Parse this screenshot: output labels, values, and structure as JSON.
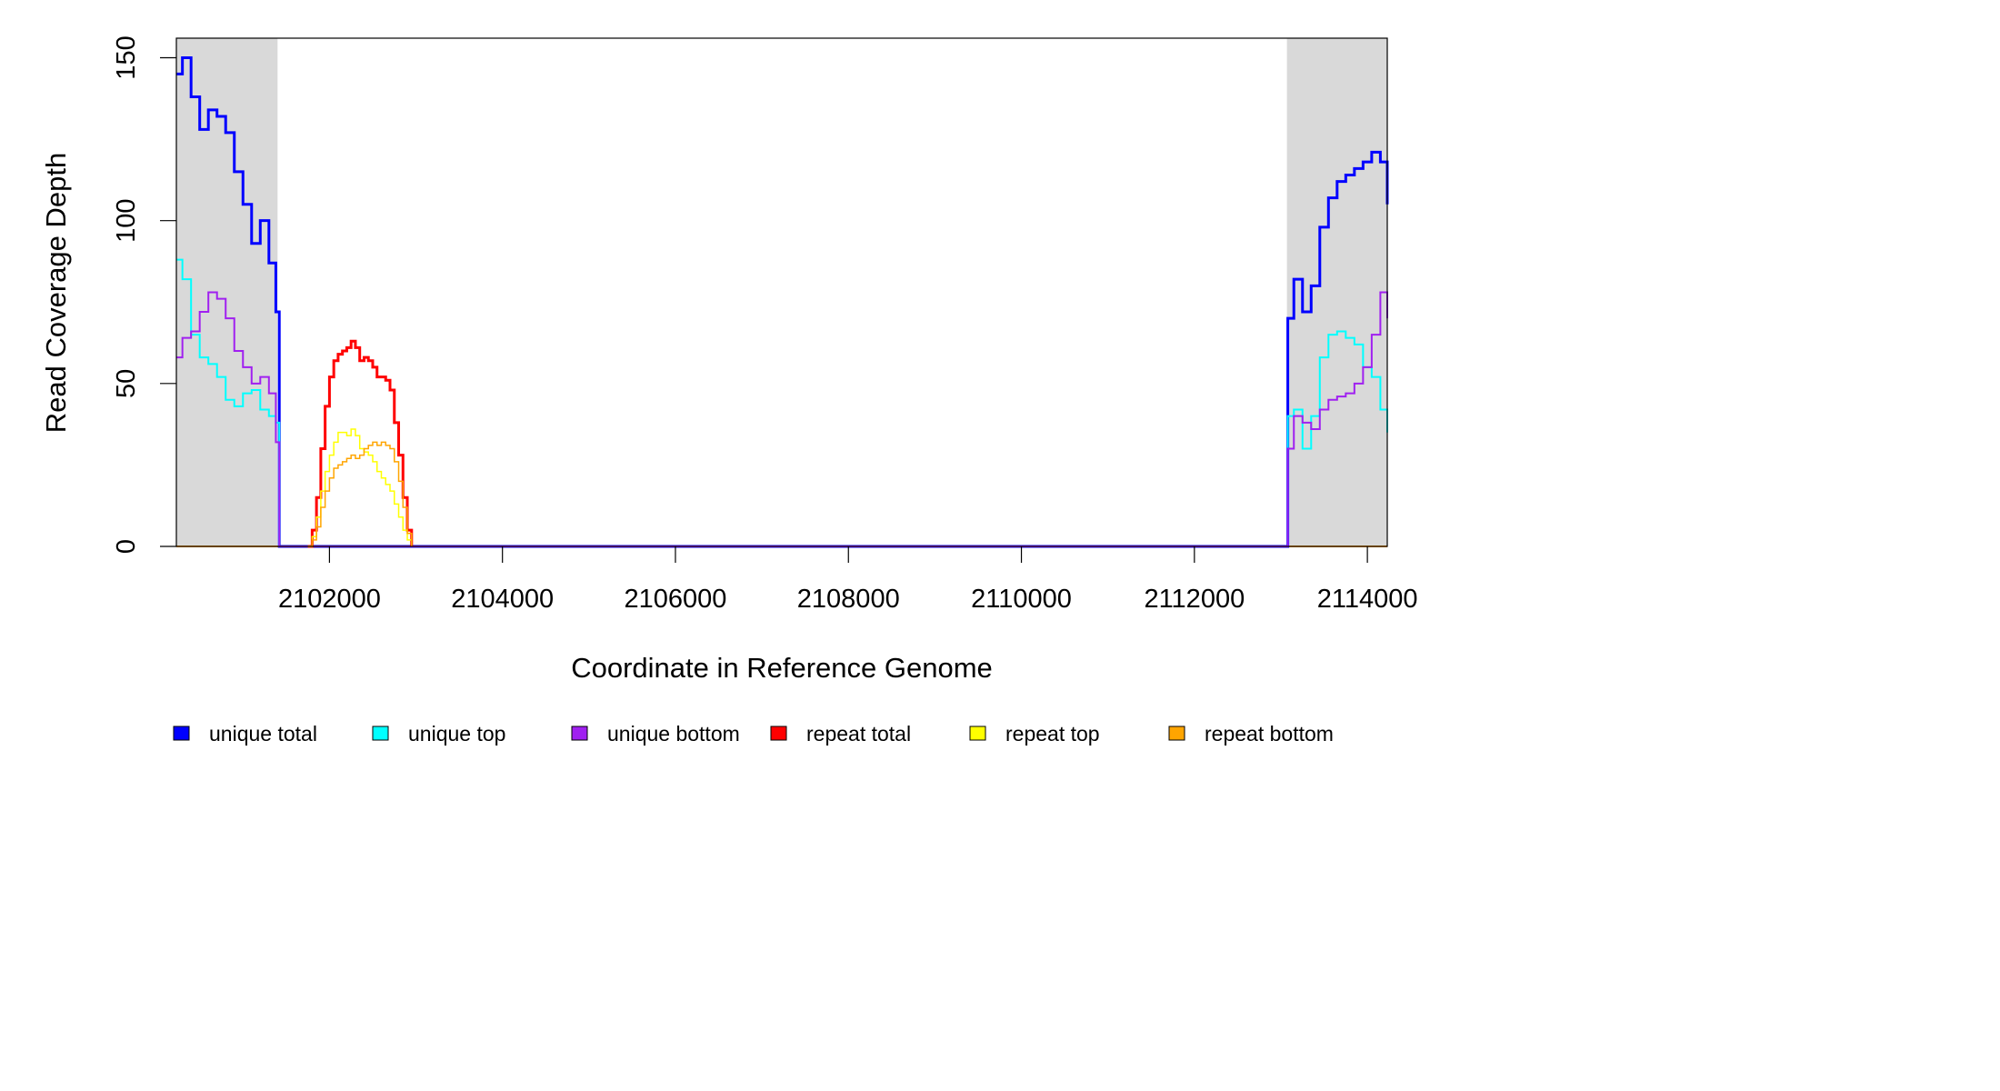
{
  "chart_data": {
    "type": "line",
    "step": true,
    "xlabel": "Coordinate in Reference Genome",
    "ylabel": "Read Coverage Depth",
    "xlim": [
      2100230,
      2114230
    ],
    "ylim": [
      0,
      156
    ],
    "x_ticks": [
      2102000,
      2104000,
      2106000,
      2108000,
      2110000,
      2112000,
      2114000
    ],
    "x_tick_labels": [
      "2102000",
      "2104000",
      "2106000",
      "2108000",
      "2110000",
      "2112000",
      "2114000"
    ],
    "y_ticks": [
      0,
      50,
      100,
      150
    ],
    "y_tick_labels": [
      "0",
      "50",
      "100",
      "150"
    ],
    "shaded_regions": [
      {
        "x": [
          2100230,
          2101400
        ],
        "color": "#d9d9d9"
      },
      {
        "x": [
          2113070,
          2114230
        ],
        "color": "#d9d9d9"
      }
    ],
    "legend": {
      "placement": "bottom",
      "items": [
        {
          "label": "unique total",
          "color": "#0000ff"
        },
        {
          "label": "unique top",
          "color": "#00ffff"
        },
        {
          "label": "unique bottom",
          "color": "#a020f0"
        },
        {
          "label": "repeat total",
          "color": "#ff0000"
        },
        {
          "label": "repeat top",
          "color": "#ffff00"
        },
        {
          "label": "repeat bottom",
          "color": "#ffa500"
        }
      ]
    },
    "series": [
      {
        "name": "unique total",
        "color": "#0000ff",
        "width": 3,
        "x": [
          2100230,
          2100300,
          2100400,
          2100500,
          2100600,
          2100700,
          2100800,
          2100900,
          2101000,
          2101100,
          2101200,
          2101300,
          2101380,
          2101420,
          2113050,
          2113080,
          2113150,
          2113250,
          2113350,
          2113450,
          2113550,
          2113650,
          2113750,
          2113850,
          2113950,
          2114050,
          2114150,
          2114230
        ],
        "y": [
          145,
          150,
          138,
          128,
          134,
          132,
          127,
          115,
          105,
          93,
          100,
          87,
          72,
          0,
          0,
          70,
          82,
          72,
          80,
          98,
          107,
          112,
          114,
          116,
          118,
          121,
          118,
          105
        ]
      },
      {
        "name": "unique top",
        "color": "#00ffff",
        "width": 2,
        "x": [
          2100230,
          2100300,
          2100400,
          2100500,
          2100600,
          2100700,
          2100800,
          2100900,
          2101000,
          2101100,
          2101200,
          2101300,
          2101380,
          2101420,
          2113050,
          2113080,
          2113150,
          2113250,
          2113350,
          2113450,
          2113550,
          2113650,
          2113750,
          2113850,
          2113950,
          2114050,
          2114150,
          2114230
        ],
        "y": [
          88,
          82,
          65,
          58,
          56,
          52,
          45,
          43,
          47,
          48,
          42,
          40,
          38,
          0,
          0,
          40,
          42,
          30,
          40,
          58,
          65,
          66,
          64,
          62,
          55,
          52,
          42,
          35
        ]
      },
      {
        "name": "unique bottom",
        "color": "#a020f0",
        "width": 2,
        "x": [
          2100230,
          2100300,
          2100400,
          2100500,
          2100600,
          2100700,
          2100800,
          2100900,
          2101000,
          2101100,
          2101200,
          2101300,
          2101380,
          2101420,
          2113050,
          2113080,
          2113150,
          2113250,
          2113350,
          2113450,
          2113550,
          2113650,
          2113750,
          2113850,
          2113950,
          2114050,
          2114150,
          2114230
        ],
        "y": [
          58,
          64,
          66,
          72,
          78,
          76,
          70,
          60,
          55,
          50,
          52,
          47,
          32,
          0,
          0,
          30,
          40,
          38,
          36,
          42,
          45,
          46,
          47,
          50,
          55,
          65,
          78,
          70
        ]
      },
      {
        "name": "repeat total",
        "color": "#ff0000",
        "width": 3,
        "x": [
          2101750,
          2101800,
          2101850,
          2101900,
          2101950,
          2102000,
          2102050,
          2102100,
          2102150,
          2102200,
          2102250,
          2102300,
          2102350,
          2102400,
          2102450,
          2102500,
          2102550,
          2102600,
          2102650,
          2102700,
          2102750,
          2102800,
          2102850,
          2102900,
          2102950
        ],
        "y": [
          0,
          5,
          15,
          30,
          43,
          52,
          57,
          59,
          60,
          61,
          63,
          61,
          57,
          58,
          57,
          55,
          52,
          52,
          51,
          48,
          38,
          28,
          15,
          5,
          0
        ]
      },
      {
        "name": "repeat top",
        "color": "#ffff00",
        "width": 1.5,
        "x": [
          2101750,
          2101800,
          2101850,
          2101900,
          2101950,
          2102000,
          2102050,
          2102100,
          2102150,
          2102200,
          2102250,
          2102300,
          2102350,
          2102400,
          2102450,
          2102500,
          2102550,
          2102600,
          2102650,
          2102700,
          2102750,
          2102800,
          2102850,
          2102900,
          2102950
        ],
        "y": [
          0,
          3,
          9,
          17,
          23,
          28,
          32,
          35,
          35,
          34,
          36,
          34,
          30,
          29,
          28,
          26,
          23,
          21,
          19,
          17,
          13,
          9,
          5,
          2,
          0
        ]
      },
      {
        "name": "repeat bottom",
        "color": "#ffa500",
        "width": 1.5,
        "x": [
          2101750,
          2101800,
          2101850,
          2101900,
          2101950,
          2102000,
          2102050,
          2102100,
          2102150,
          2102200,
          2102250,
          2102300,
          2102350,
          2102400,
          2102450,
          2102500,
          2102550,
          2102600,
          2102650,
          2102700,
          2102750,
          2102800,
          2102850,
          2102900,
          2102950
        ],
        "y": [
          0,
          2,
          6,
          12,
          17,
          21,
          24,
          25,
          26,
          27,
          28,
          27,
          28,
          30,
          31,
          32,
          31,
          32,
          31,
          30,
          26,
          20,
          12,
          4,
          0
        ]
      }
    ]
  }
}
